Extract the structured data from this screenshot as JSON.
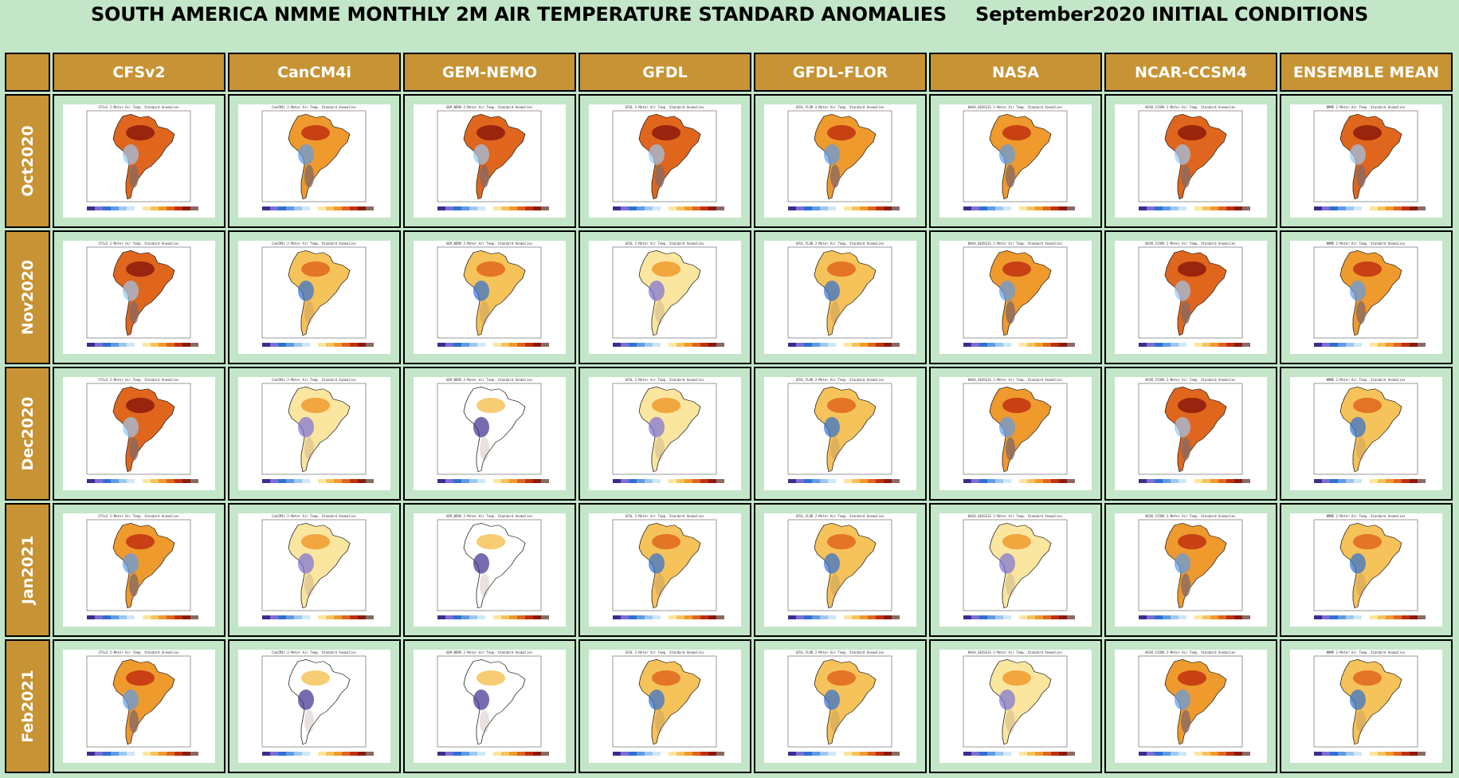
{
  "title": {
    "main": "SOUTH AMERICA NMME MONTHLY 2M AIR TEMPERATURE STANDARD ANOMALIES",
    "conditions": "September2020 INITIAL CONDITIONS"
  },
  "columns": [
    {
      "label": "CFSv2",
      "map_label": "CFSv2 2-Meter Air Temp. Standard Anomalies"
    },
    {
      "label": "CanCM4i",
      "map_label": "CanCM4i 2-Meter Air Temp. Standard Anomalies"
    },
    {
      "label": "GEM-NEMO",
      "map_label": "GEM_NEMO 2-Meter Air Temp. Standard Anomalies"
    },
    {
      "label": "GFDL",
      "map_label": "GFDL 2-Meter Air Temp. Standard Anomalies"
    },
    {
      "label": "GFDL-FLOR",
      "map_label": "GFDL_FLOR 2-Meter Air Temp. Standard Anomalies"
    },
    {
      "label": "NASA",
      "map_label": "NASA_GEOSS2S 2-Meter Air Temp. Standard Anomalies"
    },
    {
      "label": "NCAR-CCSM4",
      "map_label": "NCAR_CCSM4 2-Meter Air Temp. Standard Anomalies"
    },
    {
      "label": "ENSEMBLE MEAN",
      "map_label": "NMME 2-Meter Air Temp. Standard Anomalies"
    }
  ],
  "rows": [
    {
      "label": "Oct2020"
    },
    {
      "label": "Nov2020"
    },
    {
      "label": "Dec2020"
    },
    {
      "label": "Jan2021"
    },
    {
      "label": "Feb2021"
    }
  ],
  "anomaly_palette": [
    "#3b2d8f",
    "#7a6fd6",
    "#2f6fd1",
    "#5d9be8",
    "#9cc8f0",
    "#cfe6f7",
    "#ffffff",
    "#fbe6a0",
    "#f6c35a",
    "#ef9a2d",
    "#e0661d",
    "#c1300f",
    "#8c1a0c",
    "#8a6a62"
  ],
  "colors": {
    "background": "#c3e6c9",
    "header_fill": "#c79334",
    "header_text": "#ffffff"
  },
  "anomaly_levels": [
    [
      4,
      3,
      4,
      4,
      3,
      3,
      4,
      4
    ],
    [
      4,
      2,
      2,
      1,
      2,
      3,
      4,
      3
    ],
    [
      4,
      1,
      0,
      1,
      2,
      3,
      4,
      2
    ],
    [
      3,
      1,
      0,
      2,
      2,
      1,
      3,
      2
    ],
    [
      3,
      0,
      0,
      2,
      2,
      1,
      3,
      2
    ]
  ]
}
